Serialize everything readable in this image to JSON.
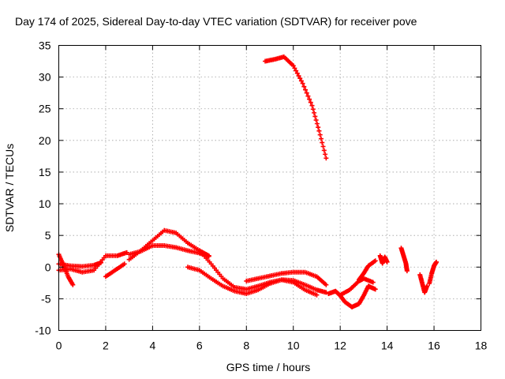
{
  "chart_data": {
    "type": "scatter",
    "title": "Day 174 of 2025, Sidereal Day-to-day VTEC variation (SDTVAR) for receiver pove",
    "xlabel": "GPS time / hours",
    "ylabel": "SDTVAR / TECUs",
    "xlim": [
      0,
      18
    ],
    "ylim": [
      -10,
      35
    ],
    "xticks": [
      0,
      2,
      4,
      6,
      8,
      10,
      12,
      14,
      16,
      18
    ],
    "yticks": [
      -10,
      -5,
      0,
      5,
      10,
      15,
      20,
      25,
      30,
      35
    ],
    "grid": true,
    "marker": "+",
    "series_color": "#ff0000",
    "tracks": [
      {
        "name": "track-1",
        "x": [
          0.0,
          0.2,
          0.4,
          0.6
        ],
        "y": [
          2.0,
          0.3,
          -1.5,
          -2.8
        ]
      },
      {
        "name": "track-2",
        "x": [
          0.0,
          0.5,
          1.0,
          1.5,
          2.0,
          2.5,
          2.9
        ],
        "y": [
          -0.5,
          -0.3,
          -0.8,
          -0.5,
          1.8,
          1.8,
          2.3
        ]
      },
      {
        "name": "track-3",
        "x": [
          0.0,
          0.5,
          1.0,
          1.5,
          1.8
        ],
        "y": [
          0.5,
          0.2,
          0.1,
          0.3,
          0.7
        ]
      },
      {
        "name": "track-4",
        "x": [
          2.0,
          2.4,
          2.8
        ],
        "y": [
          -1.5,
          -0.5,
          0.5
        ]
      },
      {
        "name": "track-5",
        "x": [
          3.0,
          3.5,
          4.0,
          4.5,
          5.0,
          5.5,
          6.0,
          6.4
        ],
        "y": [
          1.2,
          2.6,
          4.2,
          5.8,
          5.4,
          3.8,
          2.6,
          1.8
        ]
      },
      {
        "name": "track-6",
        "x": [
          3.0,
          3.5,
          4.0,
          4.5,
          5.0,
          5.5,
          6.0,
          6.4
        ],
        "y": [
          2.0,
          2.5,
          3.4,
          3.4,
          3.1,
          2.6,
          2.2,
          1.7
        ]
      },
      {
        "name": "track-7",
        "x": [
          5.5,
          6.0,
          6.5,
          7.0,
          7.5,
          8.0,
          8.5,
          9.0,
          9.5,
          10.0,
          10.5,
          11.0
        ],
        "y": [
          0.0,
          -0.5,
          -1.8,
          -3.0,
          -3.8,
          -4.2,
          -3.6,
          -2.6,
          -2.0,
          -2.4,
          -3.6,
          -4.4
        ]
      },
      {
        "name": "track-8",
        "x": [
          6.0,
          6.5,
          7.0,
          7.5,
          8.0,
          8.5,
          9.0,
          9.5,
          10.0,
          10.5,
          11.0,
          11.4
        ],
        "y": [
          2.6,
          0.5,
          -1.8,
          -3.2,
          -3.5,
          -3.0,
          -2.4,
          -2.0,
          -2.1,
          -2.8,
          -3.6,
          -4.0
        ]
      },
      {
        "name": "track-9",
        "x": [
          8.0,
          8.5,
          9.0,
          9.5,
          10.0,
          10.5,
          11.0,
          11.4
        ],
        "y": [
          -2.2,
          -1.8,
          -1.4,
          -1.0,
          -0.8,
          -0.8,
          -1.5,
          -2.8
        ]
      },
      {
        "name": "track-10",
        "x": [
          8.8,
          9.2,
          9.6,
          10.0,
          10.4,
          10.8,
          11.1,
          11.4
        ],
        "y": [
          32.5,
          32.8,
          33.2,
          31.8,
          29.0,
          25.5,
          21.5,
          17.2
        ]
      },
      {
        "name": "track-11",
        "x": [
          11.5,
          11.8,
          12.0,
          12.2,
          12.5,
          12.8,
          13.0,
          13.2,
          13.5
        ],
        "y": [
          -4.2,
          -3.8,
          -4.5,
          -5.5,
          -6.3,
          -5.8,
          -4.5,
          -3.0,
          -3.5
        ]
      },
      {
        "name": "track-12",
        "x": [
          12.0,
          12.4,
          12.8,
          13.0,
          13.4
        ],
        "y": [
          -4.4,
          -3.6,
          -2.2,
          -1.8,
          -2.4
        ]
      },
      {
        "name": "track-13",
        "x": [
          12.8,
          13.0,
          13.2,
          13.5
        ],
        "y": [
          -2.0,
          -1.0,
          0.2,
          1.0
        ]
      },
      {
        "name": "track-14",
        "x": [
          13.7,
          13.8,
          13.9,
          14.0
        ],
        "y": [
          1.8,
          0.6,
          1.6,
          0.8
        ]
      },
      {
        "name": "track-15",
        "x": [
          14.6,
          14.7,
          14.8,
          14.85
        ],
        "y": [
          3.0,
          1.8,
          0.6,
          -0.6
        ]
      },
      {
        "name": "track-16",
        "x": [
          15.4,
          15.5,
          15.6,
          15.7
        ],
        "y": [
          -1.2,
          -2.6,
          -4.0,
          -3.0
        ]
      },
      {
        "name": "track-17",
        "x": [
          15.8,
          15.9,
          16.0,
          16.1
        ],
        "y": [
          -2.6,
          -1.0,
          0.2,
          0.8
        ]
      }
    ]
  }
}
